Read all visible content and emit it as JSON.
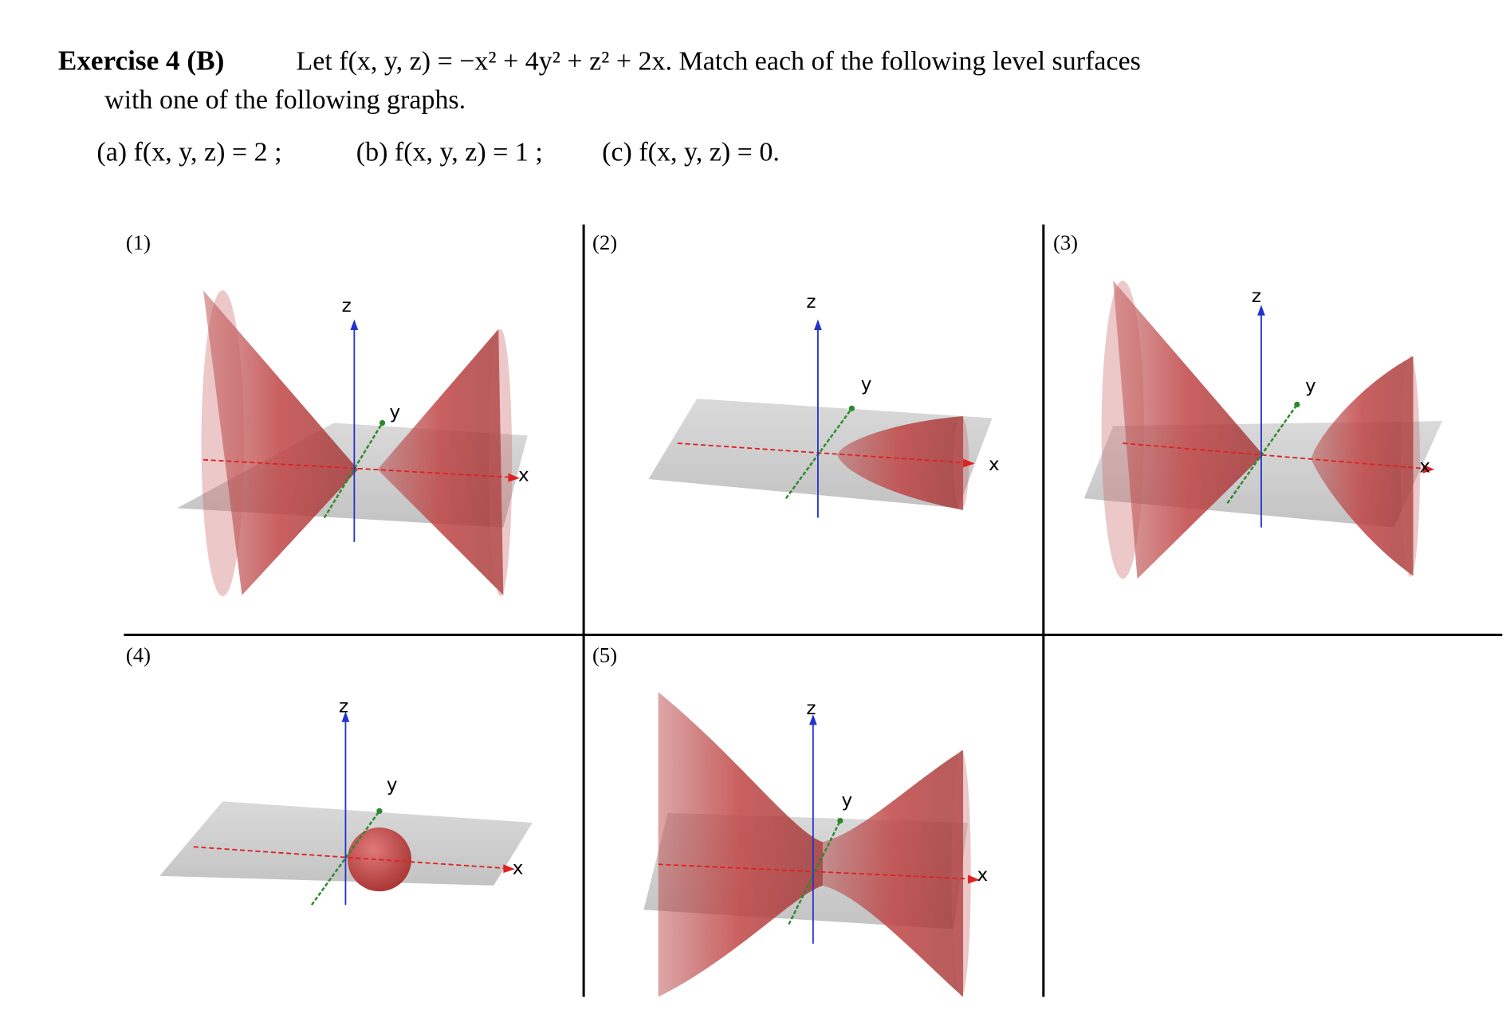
{
  "exercise": {
    "label": "Exercise 4 (B)",
    "statement": [
      "Let f(x, y, z) = −x² + 4y² + z² + 2x. Match each of the following level surfaces",
      "with one of the following graphs."
    ],
    "parts": [
      "(a)  f(x, y, z) = 2 ;",
      "(b)  f(x, y, z) = 1 ;",
      "(c)  f(x, y, z) = 0."
    ]
  },
  "panels": [
    {
      "label": "(1)",
      "axes": {
        "z": "z",
        "y": "y",
        "x": "x"
      }
    },
    {
      "label": "(2)",
      "axes": {
        "z": "z",
        "y": "y",
        "x": "x"
      }
    },
    {
      "label": "(3)",
      "axes": {
        "z": "z",
        "y": "y",
        "x": "x"
      }
    },
    {
      "label": "(4)",
      "axes": {
        "z": "z",
        "y": "y",
        "x": "x"
      }
    },
    {
      "label": "(5)",
      "axes": {
        "z": "z",
        "y": "y",
        "x": "x"
      }
    }
  ]
}
